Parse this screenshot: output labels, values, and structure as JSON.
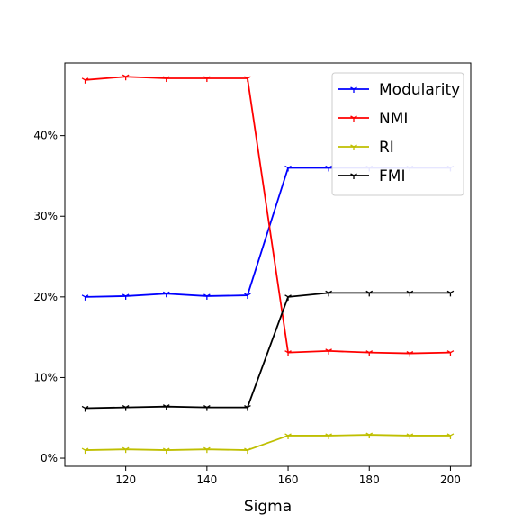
{
  "chart_data": {
    "type": "line",
    "title": "",
    "xlabel": "Sigma",
    "ylabel": "",
    "x": [
      110,
      120,
      130,
      140,
      150,
      160,
      170,
      180,
      190,
      200
    ],
    "xlim": [
      105,
      205
    ],
    "ylim": [
      -1,
      49
    ],
    "xticks": [
      120,
      140,
      160,
      180,
      200
    ],
    "yticks": [
      0,
      10,
      20,
      30,
      40
    ],
    "ytick_labels": [
      "0%",
      "10%",
      "20%",
      "30%",
      "40%"
    ],
    "grid": false,
    "legend_position": "top-right",
    "series": [
      {
        "name": "Modularity",
        "color": "#0000ff",
        "values": [
          20.0,
          20.1,
          20.4,
          20.1,
          20.2,
          36.0,
          36.0,
          36.0,
          36.0,
          36.0
        ]
      },
      {
        "name": "NMI",
        "color": "#ff0000",
        "values": [
          46.9,
          47.3,
          47.1,
          47.1,
          47.1,
          13.1,
          13.3,
          13.1,
          13.0,
          13.1
        ]
      },
      {
        "name": "RI",
        "color": "#bfbf00",
        "values": [
          1.0,
          1.1,
          1.0,
          1.1,
          1.0,
          2.8,
          2.8,
          2.9,
          2.8,
          2.8
        ]
      },
      {
        "name": "FMI",
        "color": "#000000",
        "values": [
          6.2,
          6.3,
          6.4,
          6.3,
          6.3,
          20.0,
          20.5,
          20.5,
          20.5,
          20.5
        ]
      }
    ]
  }
}
